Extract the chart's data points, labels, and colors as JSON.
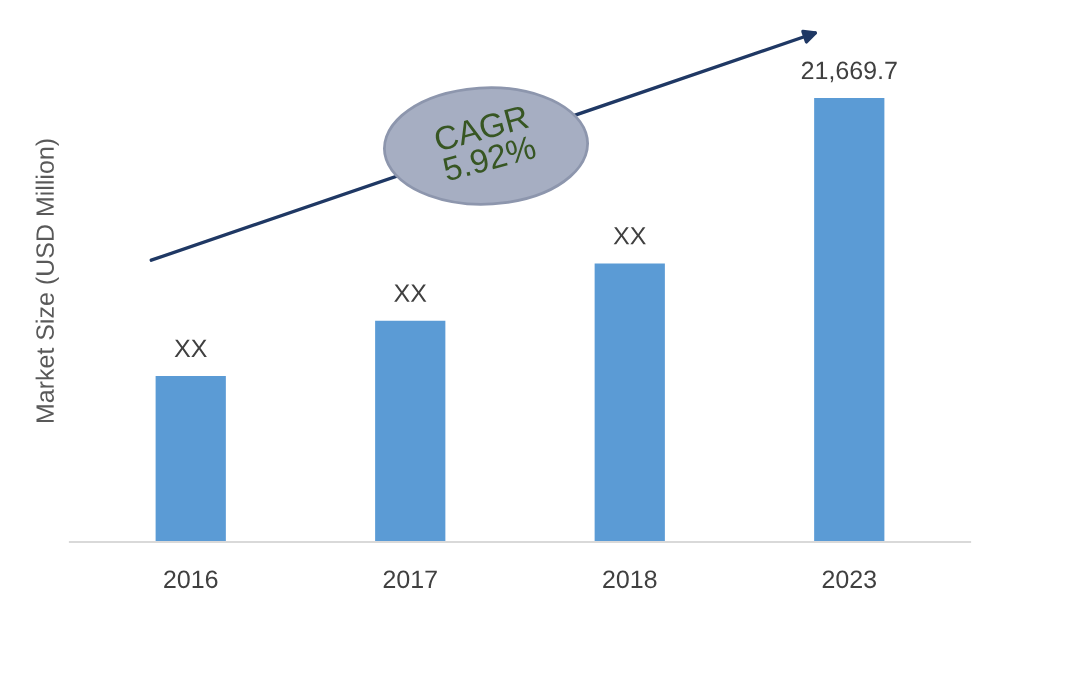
{
  "chart_data": {
    "type": "bar",
    "tick_labels": "x",
    "ylabel": "Market Size (USD Million)",
    "categories": [
      "2016",
      "2017",
      "2018",
      "2023"
    ],
    "values": [
      8100,
      10800,
      13600,
      21669.7
    ],
    "value_labels": [
      "XX",
      "XX",
      "XX",
      "21,669.7"
    ],
    "color": "#5b9bd5",
    "annotations": [
      "CAGR\n5.92%"
    ],
    "grid": false,
    "legend": false
  }
}
